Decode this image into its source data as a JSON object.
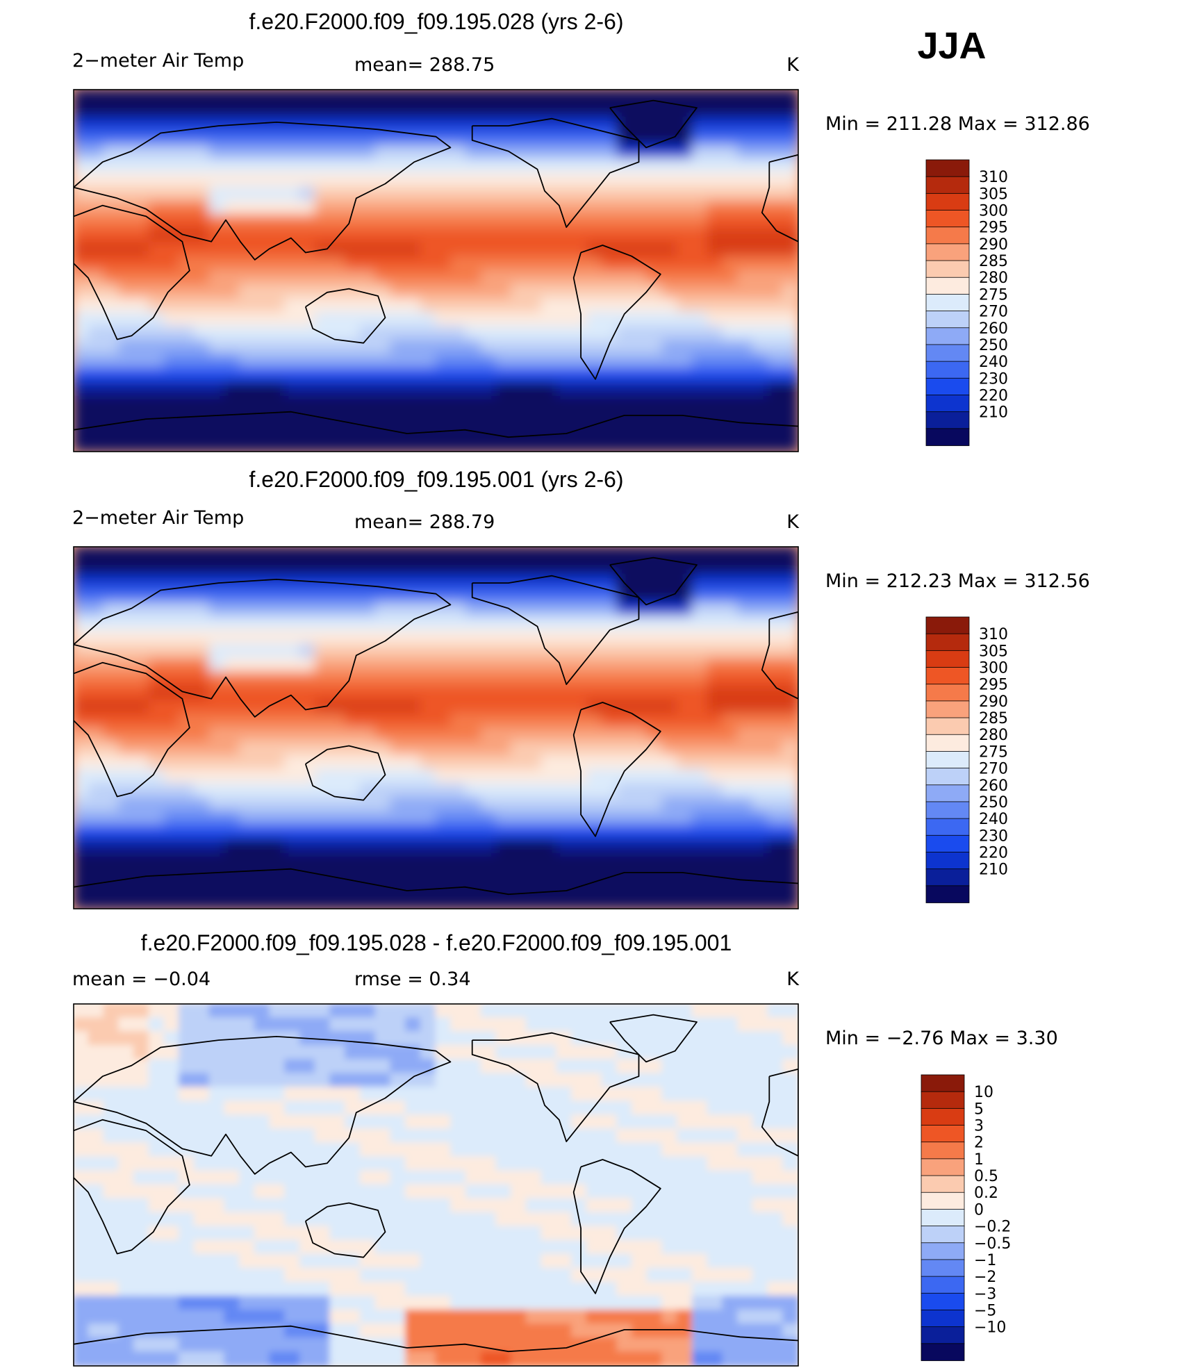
{
  "season": "JJA",
  "colors": {
    "temp_scale": [
      "#08085e",
      "#0a1f9a",
      "#0d34cf",
      "#1a4bee",
      "#3c68f2",
      "#6388f4",
      "#8eaaf6",
      "#bdd1f8",
      "#dcebfb",
      "#fdebdf",
      "#fbcbb0",
      "#f9a27c",
      "#f57a4a",
      "#ee5625",
      "#d93c13",
      "#b52a0d",
      "#8a1a0a"
    ],
    "diff_scale": [
      "#08085e",
      "#0a1f9a",
      "#0d34cf",
      "#1a4bee",
      "#3c68f2",
      "#6388f4",
      "#8eaaf6",
      "#bdd1f8",
      "#dcebfb",
      "#fdebdf",
      "#fbcbb0",
      "#f9a27c",
      "#f57a4a",
      "#ee5625",
      "#d93c13",
      "#b52a0d",
      "#8a1a0a"
    ]
  },
  "chart_data": [
    {
      "type": "heatmap",
      "title": "f.e20.F2000.f09_f09.195.028 (yrs 2-6)",
      "variable": "2−meter Air Temp",
      "stat_left": "mean=  288.75",
      "units": "K",
      "min_max": "Min  =  211.28  Max  =  312.86",
      "min": 211.28,
      "max": 312.86,
      "mean": 288.75,
      "field": "model",
      "levels": [
        "310",
        "305",
        "300",
        "295",
        "290",
        "285",
        "280",
        "275",
        "270",
        "260",
        "250",
        "240",
        "230",
        "220",
        "210"
      ]
    },
    {
      "type": "heatmap",
      "title": "f.e20.F2000.f09_f09.195.001 (yrs 2-6)",
      "variable": "2−meter Air Temp",
      "stat_left": "mean=  288.79",
      "units": "K",
      "min_max": "Min  =  212.23  Max  =  312.56",
      "min": 212.23,
      "max": 312.56,
      "mean": 288.79,
      "field": "model",
      "levels": [
        "310",
        "305",
        "300",
        "295",
        "290",
        "285",
        "280",
        "275",
        "270",
        "260",
        "250",
        "240",
        "230",
        "220",
        "210"
      ]
    },
    {
      "type": "heatmap",
      "title": "f.e20.F2000.f09_f09.195.028 - f.e20.F2000.f09_f09.195.001",
      "variable": "mean  =     −0.04",
      "stat_left": "rmse  =      0.34",
      "units": "K",
      "min_max": "Min  =    −2.76  Max  =        3.30",
      "min": -2.76,
      "max": 3.3,
      "mean": -0.04,
      "rmse": 0.34,
      "field": "diff",
      "levels": [
        "10",
        "5",
        "3",
        "2",
        "1",
        "0.5",
        "0.2",
        "0",
        "−0.2",
        "−0.5",
        "−1",
        "−2",
        "−3",
        "−5",
        "−10"
      ]
    }
  ]
}
